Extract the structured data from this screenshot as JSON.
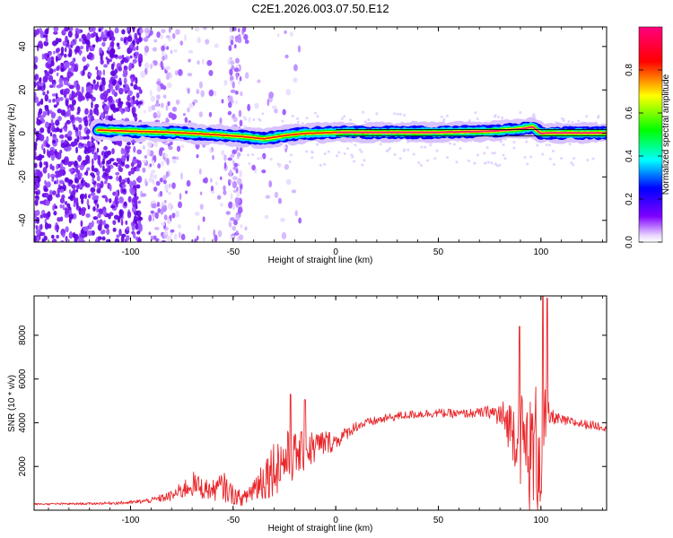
{
  "figure": {
    "title": "C2E1.2026.003.07.50.E12"
  },
  "chart_data": [
    {
      "type": "heatmap",
      "title": "C2E1.2026.003.07.50.E12",
      "xlabel": "Height of straight line (km)",
      "ylabel": "Frequency (Hz)",
      "xlim": [
        -147,
        132
      ],
      "ylim": [
        -50,
        49
      ],
      "xticks": [
        -100,
        -50,
        0,
        50,
        100
      ],
      "yticks": [
        -40,
        -20,
        0,
        20,
        40
      ],
      "xtick_labels": [
        "-100",
        "-50",
        "0",
        "50",
        "100"
      ],
      "ytick_labels": [
        "-40",
        "-20",
        "0",
        "20",
        "40"
      ],
      "colorbar": {
        "label": "Normalized spectral amplitude",
        "range": [
          0,
          1
        ],
        "ticks": [
          0.0,
          0.2,
          0.4,
          0.6,
          0.8
        ],
        "tick_labels": [
          "0.0",
          "0.2",
          "0.4",
          "0.6",
          "0.8"
        ],
        "colors": [
          "#ffffff",
          "#7f00ff",
          "#0000ff",
          "#00ffff",
          "#00ff00",
          "#ffff00",
          "#ff0000",
          "#ff0080"
        ]
      },
      "ridge": {
        "x": [
          -115,
          -100,
          -80,
          -60,
          -45,
          -35,
          -25,
          -15,
          -5,
          0,
          50,
          75,
          90,
          96,
          100,
          104,
          132
        ],
        "y": [
          1.5,
          1.0,
          0.5,
          -0.5,
          -1.5,
          -2.5,
          -1.0,
          0.0,
          0.3,
          0.5,
          0.5,
          1.0,
          2.0,
          3.0,
          0.0,
          0.2,
          0.2
        ]
      }
    },
    {
      "type": "line",
      "xlabel": "Height of straight line (km)",
      "ylabel": "SNR (10 * v/v)",
      "xlim": [
        -147,
        132
      ],
      "ylim": [
        0,
        9800
      ],
      "xticks": [
        -100,
        -50,
        0,
        50,
        100
      ],
      "yticks": [
        2000,
        4000,
        6000,
        8000
      ],
      "xtick_labels": [
        "-100",
        "-50",
        "0",
        "50",
        "100"
      ],
      "ytick_labels": [
        "2000",
        "4000",
        "6000",
        "8000"
      ],
      "series": [
        {
          "name": "SNR",
          "color": "#e8262a",
          "x": [
            -147,
            -120,
            -100,
            -90,
            -80,
            -75,
            -70,
            -65,
            -60,
            -55,
            -50,
            -45,
            -40,
            -35,
            -30,
            -25,
            -20,
            -15,
            -10,
            -5,
            0,
            5,
            10,
            20,
            30,
            40,
            50,
            60,
            70,
            75,
            80,
            85,
            90,
            95,
            100,
            103,
            105,
            110,
            120,
            132
          ],
          "values": [
            280,
            300,
            350,
            450,
            650,
            900,
            1200,
            1000,
            900,
            1100,
            700,
            500,
            1000,
            1500,
            2000,
            2300,
            2500,
            2700,
            2900,
            3100,
            3150,
            3500,
            3850,
            4100,
            4300,
            4400,
            4450,
            4400,
            4450,
            4500,
            4300,
            3900,
            3300,
            2500,
            3000,
            4200,
            4300,
            4100,
            3950,
            3800
          ],
          "noise": [
            40,
            50,
            80,
            120,
            250,
            400,
            600,
            500,
            450,
            700,
            450,
            300,
            700,
            1100,
            1300,
            1400,
            1100,
            900,
            800,
            600,
            400,
            300,
            250,
            200,
            200,
            200,
            200,
            200,
            220,
            300,
            700,
            1200,
            2200,
            2800,
            3500,
            900,
            350,
            250,
            200,
            200
          ],
          "peaks": [
            {
              "x": 89.5,
              "value": 8400
            },
            {
              "x": 101,
              "value": 9800
            },
            {
              "x": 103,
              "value": 9700
            },
            {
              "x": -22,
              "value": 5300
            },
            {
              "x": -15,
              "value": 5050
            }
          ]
        }
      ]
    }
  ]
}
